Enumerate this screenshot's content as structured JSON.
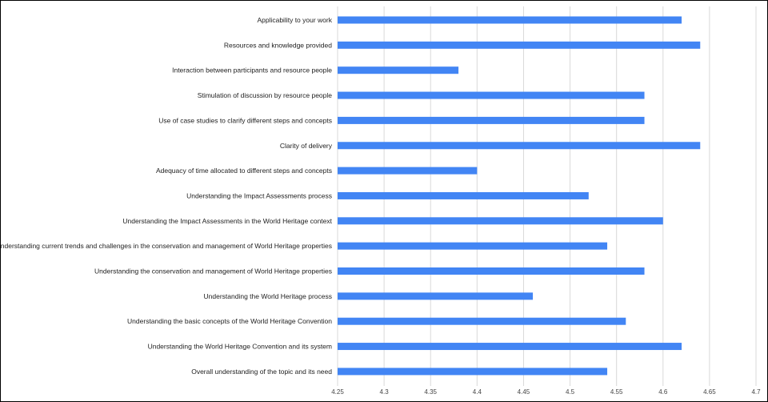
{
  "chart_data": {
    "type": "bar",
    "orientation": "horizontal",
    "title": "",
    "xlabel": "",
    "ylabel": "",
    "xlim": [
      4.25,
      4.7
    ],
    "x_ticks": [
      "4.25",
      "4.3",
      "4.35",
      "4.4",
      "4.45",
      "4.5",
      "4.55",
      "4.6",
      "4.65",
      "4.7"
    ],
    "grid": true,
    "bar_color": "#4285f4",
    "categories": [
      "Applicability to your work",
      "Resources and knowledge provided",
      "Interaction between participants and resource people",
      "Stimulation of discussion by resource people",
      "Use of case studies to clarify different steps and concepts",
      "Clarity of delivery",
      "Adequacy of time allocated to different steps and concepts",
      "Understanding the Impact Assessments process",
      "Understanding the Impact Assessments in the World Heritage context",
      "Understanding current trends and challenges in the conservation and management of World Heritage properties",
      "Understanding the conservation and management of World Heritage properties",
      "Understanding the World Heritage process",
      "Understanding the basic concepts of the World Heritage Convention",
      "Understanding the World Heritage Convention and its system",
      "Overall understanding of the topic and its need"
    ],
    "values": [
      4.62,
      4.64,
      4.38,
      4.58,
      4.58,
      4.64,
      4.4,
      4.52,
      4.6,
      4.54,
      4.58,
      4.46,
      4.56,
      4.62,
      4.54
    ]
  }
}
